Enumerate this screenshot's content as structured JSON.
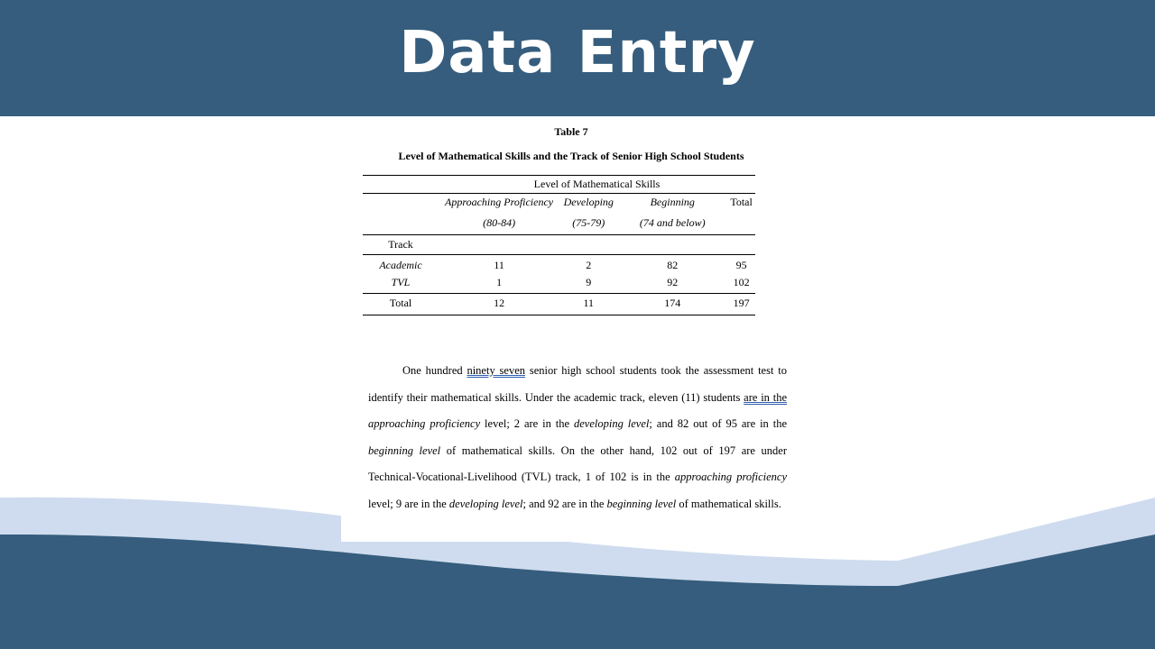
{
  "slide": {
    "title": "Data Entry"
  },
  "table": {
    "number": "Table 7",
    "caption": "Level of Mathematical Skills and the Track of Senior High School Students",
    "group_header": "Level of Mathematical Skills",
    "columns": [
      {
        "label": "Approaching Proficiency",
        "range": "(80-84)"
      },
      {
        "label": "Developing",
        "range": "(75-79)"
      },
      {
        "label": "Beginning",
        "range": "(74 and below)"
      },
      {
        "label": "Total",
        "range": ""
      }
    ],
    "row_header": "Track",
    "rows": [
      {
        "label": "Academic",
        "values": [
          "11",
          "2",
          "82",
          "95"
        ]
      },
      {
        "label": "TVL",
        "values": [
          "1",
          "9",
          "92",
          "102"
        ]
      }
    ],
    "total": {
      "label": "Total",
      "values": [
        "12",
        "11",
        "174",
        "197"
      ]
    }
  },
  "paragraph": [
    {
      "text": "One hundred ",
      "style": ""
    },
    {
      "text": "ninety seven",
      "style": "underline"
    },
    {
      "text": " senior high school students took the assessment test to identify their mathematical skills. Under the academic track, eleven (11) students ",
      "style": ""
    },
    {
      "text": "are in the",
      "style": "underline"
    },
    {
      "text": " ",
      "style": ""
    },
    {
      "text": "approaching proficiency",
      "style": "italic"
    },
    {
      "text": " level; 2 are in the ",
      "style": ""
    },
    {
      "text": "developing level",
      "style": "italic"
    },
    {
      "text": "; and 82 out of 95 are in the ",
      "style": ""
    },
    {
      "text": "beginning level",
      "style": "italic"
    },
    {
      "text": " of mathematical skills. On the other hand, 102 out of 197 are under Technical-Vocational-Livelihood (TVL) track, 1 of 102 is in the ",
      "style": ""
    },
    {
      "text": "approaching proficiency",
      "style": "italic"
    },
    {
      "text": " level; 9 are in the ",
      "style": ""
    },
    {
      "text": "developing level",
      "style": "italic"
    },
    {
      "text": "; and 92 are in the ",
      "style": ""
    },
    {
      "text": "beginning level",
      "style": "italic"
    },
    {
      "text": " of mathematical skills.",
      "style": ""
    }
  ],
  "colors": {
    "header": "#365d7d",
    "wave_light": "#cfdcef",
    "wave_dark": "#365d7d"
  }
}
